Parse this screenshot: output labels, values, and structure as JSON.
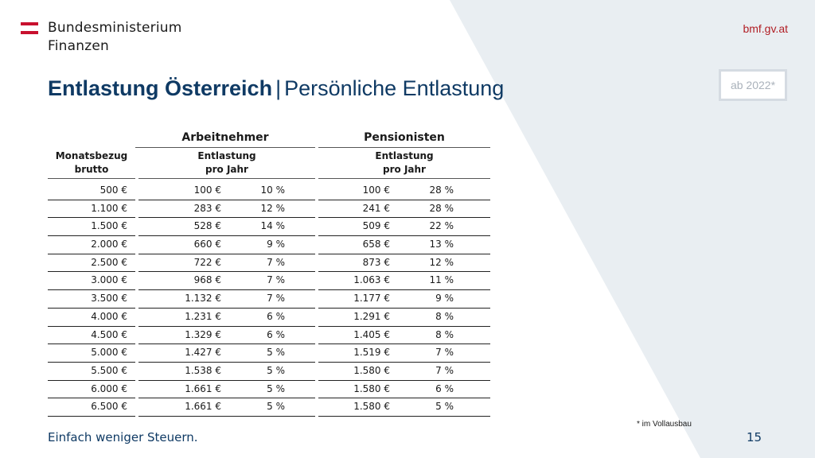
{
  "colors": {
    "accent_red": "#b11e25",
    "navy": "#0f3a64",
    "background_shape": "#e9eef2"
  },
  "header": {
    "logo_line1": "Bundesministerium",
    "logo_line2": "Finanzen",
    "logo_icon": "austria-flag-icon",
    "site": "bmf.gv.at"
  },
  "title": {
    "main": "Entlastung Österreich",
    "separator": "|",
    "sub": "Persönliche Entlastung"
  },
  "badge": "ab 2022*",
  "table": {
    "group_an": "Arbeitnehmer",
    "group_pe": "Pensionisten",
    "col_m_1": "Monatsbezug",
    "col_m_2": "brutto",
    "col_a_1": "Entlastung",
    "col_a_2": "pro Jahr",
    "col_p_1": "Entlastung",
    "col_p_2": "pro Jahr",
    "rows": [
      [
        "500 €",
        "100 €",
        "10 %",
        "100 €",
        "28 %"
      ],
      [
        "1.100 €",
        "283 €",
        "12 %",
        "241 €",
        "28 %"
      ],
      [
        "1.500 €",
        "528 €",
        "14 %",
        "509 €",
        "22 %"
      ],
      [
        "2.000 €",
        "660 €",
        "9 %",
        "658 €",
        "13 %"
      ],
      [
        "2.500 €",
        "722 €",
        "7 %",
        "873 €",
        "12 %"
      ],
      [
        "3.000 €",
        "968 €",
        "7 %",
        "1.063 €",
        "11 %"
      ],
      [
        "3.500 €",
        "1.132 €",
        "7 %",
        "1.177 €",
        "9 %"
      ],
      [
        "4.000 €",
        "1.231 €",
        "6 %",
        "1.291 €",
        "8 %"
      ],
      [
        "4.500 €",
        "1.329 €",
        "6 %",
        "1.405 €",
        "8 %"
      ],
      [
        "5.000 €",
        "1.427 €",
        "5 %",
        "1.519 €",
        "7 %"
      ],
      [
        "5.500 €",
        "1.538 €",
        "5 %",
        "1.580 €",
        "7 %"
      ],
      [
        "6.000 €",
        "1.661 €",
        "5 %",
        "1.580 €",
        "6 %"
      ],
      [
        "6.500 €",
        "1.661 €",
        "5 %",
        "1.580 €",
        "5 %"
      ]
    ]
  },
  "footnote": "* im Vollausbau",
  "footer": {
    "text": "Einfach weniger Steuern.",
    "page": "15"
  }
}
